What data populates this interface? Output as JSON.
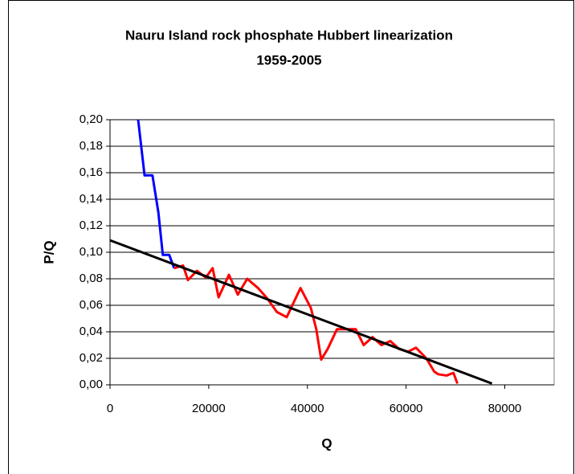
{
  "chart_data": {
    "type": "line",
    "title": [
      "Nauru Island rock phosphate Hubbert linearization",
      "1959-2005"
    ],
    "x_label": "Q",
    "y_label": "P/Q",
    "xlim": [
      0,
      90000
    ],
    "xticks": [
      0,
      20000,
      40000,
      60000,
      80000
    ],
    "ylim": [
      0,
      0.2
    ],
    "yticks": [
      {
        "value": 0,
        "label": "0,00"
      },
      {
        "value": 0.02,
        "label": "0,02"
      },
      {
        "value": 0.04,
        "label": "0,04"
      },
      {
        "value": 0.06,
        "label": "0,06"
      },
      {
        "value": 0.08,
        "label": "0,08"
      },
      {
        "value": 0.1,
        "label": "0,10"
      },
      {
        "value": 0.12,
        "label": "0,12"
      },
      {
        "value": 0.14,
        "label": "0,14"
      },
      {
        "value": 0.16,
        "label": "0,16"
      },
      {
        "value": 0.18,
        "label": "0,18"
      },
      {
        "value": 0.2,
        "label": "0,20"
      }
    ],
    "grid": true,
    "series": [
      {
        "color": "#0000ff",
        "x": [
          5700,
          7000,
          8600,
          9800,
          10700,
          12000,
          13000
        ],
        "values": [
          0.2,
          0.158,
          0.158,
          0.13,
          0.098,
          0.098,
          0.088
        ]
      },
      {
        "color": "#ff0000",
        "x": [
          13000,
          14800,
          15800,
          17600,
          19400,
          20800,
          22000,
          24100,
          25900,
          27800,
          30000,
          31900,
          33800,
          35800,
          38600,
          40700,
          41800,
          42800,
          44100,
          46000,
          47500,
          49800,
          51400,
          53200,
          55000,
          56800,
          58600,
          60400,
          62000,
          64100,
          65700,
          66500,
          68200,
          69600,
          70400
        ],
        "values": [
          0.088,
          0.09,
          0.079,
          0.086,
          0.081,
          0.088,
          0.066,
          0.083,
          0.068,
          0.08,
          0.073,
          0.065,
          0.055,
          0.051,
          0.073,
          0.058,
          0.042,
          0.019,
          0.027,
          0.042,
          0.042,
          0.042,
          0.03,
          0.036,
          0.03,
          0.033,
          0.027,
          0.025,
          0.028,
          0.02,
          0.01,
          0.008,
          0.007,
          0.009,
          0.001
        ]
      },
      {
        "color": "#000000",
        "x": [
          0,
          77400
        ],
        "values": [
          0.109,
          0.001
        ]
      }
    ]
  }
}
